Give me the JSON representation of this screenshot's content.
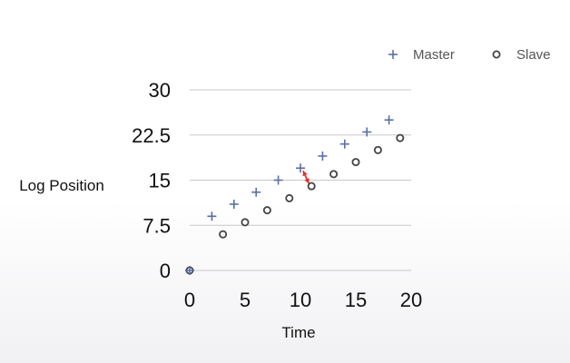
{
  "chart_data": {
    "type": "scatter",
    "xlabel": "Time",
    "ylabel": "Log Position",
    "xlim": [
      0,
      20
    ],
    "ylim": [
      0,
      30
    ],
    "x_ticks": [
      "0",
      "5",
      "10",
      "15",
      "20"
    ],
    "y_ticks": [
      "0",
      "7.5",
      "15",
      "22.5",
      "30"
    ],
    "grid": "horizontal",
    "legend_position": "top-right",
    "colors": {
      "master": "#5a6fa8",
      "slave": "#444444",
      "lag_arrow": "#e0302a"
    },
    "series": [
      {
        "name": "Master",
        "marker": "plus",
        "x": [
          0,
          2,
          4,
          6,
          8,
          10,
          12,
          14,
          16,
          18
        ],
        "y": [
          0,
          9,
          11,
          13,
          15,
          17,
          19,
          21,
          23,
          25
        ]
      },
      {
        "name": "Slave",
        "marker": "circle",
        "x": [
          0,
          3,
          5,
          7,
          9,
          11,
          13,
          15,
          17,
          19
        ],
        "y": [
          0,
          6,
          8,
          10,
          12,
          14,
          16,
          18,
          20,
          22
        ]
      }
    ],
    "annotations": [
      {
        "type": "double-arrow",
        "from": {
          "x": 10,
          "y": 17
        },
        "to": {
          "x": 11,
          "y": 14
        }
      }
    ]
  }
}
